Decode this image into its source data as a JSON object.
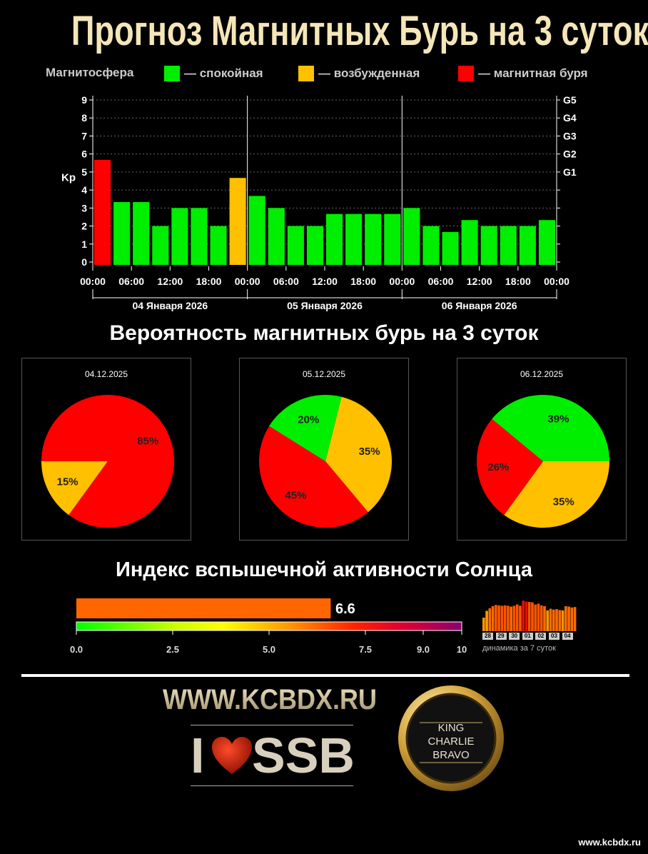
{
  "title": "Прогноз Магнитных Бурь на 3 суток",
  "legend": {
    "label": "Магнитосфера",
    "items": [
      {
        "label": "— спокойная",
        "color": "#00ee00"
      },
      {
        "label": "— возбужденная",
        "color": "#ffc000"
      },
      {
        "label": "— магнитная буря",
        "color": "#ff0000"
      }
    ]
  },
  "chart_data": [
    {
      "type": "bar",
      "ylabel": "Kp",
      "ylim": [
        0,
        9
      ],
      "y_ticks": [
        "0",
        "1",
        "2",
        "3",
        "4",
        "5",
        "6",
        "7",
        "8",
        "9"
      ],
      "g_scale": [
        {
          "label": "G1",
          "kp": 5
        },
        {
          "label": "G2",
          "kp": 6
        },
        {
          "label": "G3",
          "kp": 7
        },
        {
          "label": "G4",
          "kp": 8
        },
        {
          "label": "G5",
          "kp": 9
        }
      ],
      "x_tick_labels": [
        "00:00",
        "06:00",
        "12:00",
        "18:00",
        "00:00",
        "06:00",
        "12:00",
        "18:00",
        "00:00",
        "06:00",
        "12:00",
        "18:00",
        "00:00"
      ],
      "day_labels": [
        "04 Января 2026",
        "05 Января 2026",
        "06 Января 2026"
      ],
      "values": [
        5.67,
        3.33,
        3.33,
        2.0,
        3.0,
        3.0,
        2.0,
        4.67,
        3.67,
        3.0,
        2.0,
        2.0,
        2.67,
        2.67,
        2.67,
        2.67,
        3.0,
        2.0,
        1.67,
        2.33,
        2.0,
        2.0,
        2.0,
        2.33
      ],
      "colors": [
        "#ff0000",
        "#00ee00",
        "#00ee00",
        "#00ee00",
        "#00ee00",
        "#00ee00",
        "#00ee00",
        "#ffc000",
        "#00ee00",
        "#00ee00",
        "#00ee00",
        "#00ee00",
        "#00ee00",
        "#00ee00",
        "#00ee00",
        "#00ee00",
        "#00ee00",
        "#00ee00",
        "#00ee00",
        "#00ee00",
        "#00ee00",
        "#00ee00",
        "#00ee00",
        "#00ee00"
      ],
      "grid": true
    },
    {
      "type": "pie",
      "title": "Вероятность магнитных бурь на 3 суток",
      "pies": [
        {
          "date": "04.12.2025",
          "slices": [
            {
              "label": "15%",
              "value": 15,
              "color": "#ffc000"
            },
            {
              "label": "85%",
              "value": 85,
              "color": "#ff0000"
            }
          ]
        },
        {
          "date": "05.12.2025",
          "slices": [
            {
              "label": "35%",
              "value": 35,
              "color": "#ffc000"
            },
            {
              "label": "45%",
              "value": 45,
              "color": "#ff0000"
            },
            {
              "label": "20%",
              "value": 20,
              "color": "#00ee00"
            }
          ]
        },
        {
          "date": "06.12.2025",
          "slices": [
            {
              "label": "35%",
              "value": 35,
              "color": "#ffc000"
            },
            {
              "label": "26%",
              "value": 26,
              "color": "#ff0000"
            },
            {
              "label": "39%",
              "value": 39,
              "color": "#00ee00"
            }
          ]
        }
      ]
    },
    {
      "type": "bar",
      "title": "Индекс вспышечной активности Солнца",
      "value": 6.6,
      "value_label": "6.6",
      "xlim": [
        0,
        10
      ],
      "ticks": [
        {
          "label": "0.0",
          "v": 0
        },
        {
          "label": "2.5",
          "v": 2.5
        },
        {
          "label": "5.0",
          "v": 5
        },
        {
          "label": "7.5",
          "v": 7.5
        },
        {
          "label": "9.0",
          "v": 9
        },
        {
          "label": "10",
          "v": 10
        }
      ],
      "bar_color": "#ff6600",
      "dynamics": {
        "caption": "динамика за 7 суток",
        "days": [
          "28",
          "29",
          "30",
          "01",
          "02",
          "03",
          "04"
        ],
        "values": [
          3.2,
          4.8,
          5.4,
          5.9,
          6.2,
          6.1,
          6.0,
          6.1,
          6.0,
          5.8,
          6.0,
          6.3,
          6.0,
          7.2,
          7.0,
          6.9,
          6.8,
          6.3,
          6.5,
          6.1,
          5.9,
          4.9,
          5.3,
          5.1,
          5.2,
          5.0,
          4.9,
          5.9,
          5.8,
          5.6,
          5.7
        ]
      }
    }
  ],
  "footer": {
    "site": "WWW.KCBDX.RU",
    "ssb_i": "I",
    "ssb": "SSB",
    "badge_lines": [
      "KING",
      "CHARLIE",
      "BRAVO"
    ],
    "url": "www.kcbdx.ru"
  }
}
